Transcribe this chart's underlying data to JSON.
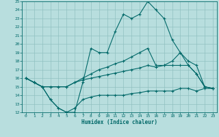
{
  "xlabel": "Humidex (Indice chaleur)",
  "bg_color": "#b8dede",
  "line_color": "#006868",
  "grid_color": "#90c0c0",
  "xlim": [
    -0.5,
    23.5
  ],
  "ylim": [
    12,
    25
  ],
  "xticks": [
    0,
    1,
    2,
    3,
    4,
    5,
    6,
    7,
    8,
    9,
    10,
    11,
    12,
    13,
    14,
    15,
    16,
    17,
    18,
    19,
    20,
    21,
    22,
    23
  ],
  "yticks": [
    12,
    13,
    14,
    15,
    16,
    17,
    18,
    19,
    20,
    21,
    22,
    23,
    24,
    25
  ],
  "line1_x": [
    0,
    1,
    2,
    3,
    4,
    5,
    6,
    7,
    8,
    9,
    10,
    11,
    12,
    13,
    14,
    15,
    16,
    17,
    18,
    19,
    20,
    21,
    22,
    23
  ],
  "line1_y": [
    16,
    15.5,
    15,
    13.5,
    12.5,
    12,
    12,
    15.5,
    19.5,
    19,
    19,
    21.5,
    23.5,
    23,
    23.5,
    25,
    24,
    23,
    20.5,
    19,
    17.5,
    16.5,
    15,
    14.8
  ],
  "line2_x": [
    0,
    1,
    2,
    3,
    4,
    5,
    6,
    7,
    8,
    9,
    10,
    11,
    12,
    13,
    14,
    15,
    16,
    17,
    18,
    19,
    20,
    21,
    22,
    23
  ],
  "line2_y": [
    16,
    15.5,
    15,
    15,
    15,
    15,
    15.5,
    16,
    16.5,
    17,
    17.3,
    17.7,
    18,
    18.5,
    19,
    19.5,
    17.5,
    17.5,
    18,
    19,
    18,
    17.5,
    15,
    14.8
  ],
  "line3_x": [
    0,
    1,
    2,
    3,
    4,
    5,
    6,
    7,
    8,
    9,
    10,
    11,
    12,
    13,
    14,
    15,
    16,
    17,
    18,
    19,
    20,
    21,
    22,
    23
  ],
  "line3_y": [
    16,
    15.5,
    15,
    15,
    15,
    15,
    15.5,
    15.8,
    16,
    16.2,
    16.4,
    16.6,
    16.8,
    17,
    17.2,
    17.5,
    17.3,
    17.5,
    17.5,
    17.5,
    17.5,
    16.5,
    15,
    14.8
  ],
  "line4_x": [
    0,
    1,
    2,
    3,
    4,
    5,
    6,
    7,
    8,
    9,
    10,
    11,
    12,
    13,
    14,
    15,
    16,
    17,
    18,
    19,
    20,
    21,
    22,
    23
  ],
  "line4_y": [
    16,
    15.5,
    15,
    13.5,
    12.5,
    12,
    12.5,
    13.5,
    13.8,
    14,
    14,
    14,
    14,
    14.2,
    14.3,
    14.5,
    14.5,
    14.5,
    14.5,
    14.8,
    14.8,
    14.5,
    14.8,
    14.8
  ]
}
